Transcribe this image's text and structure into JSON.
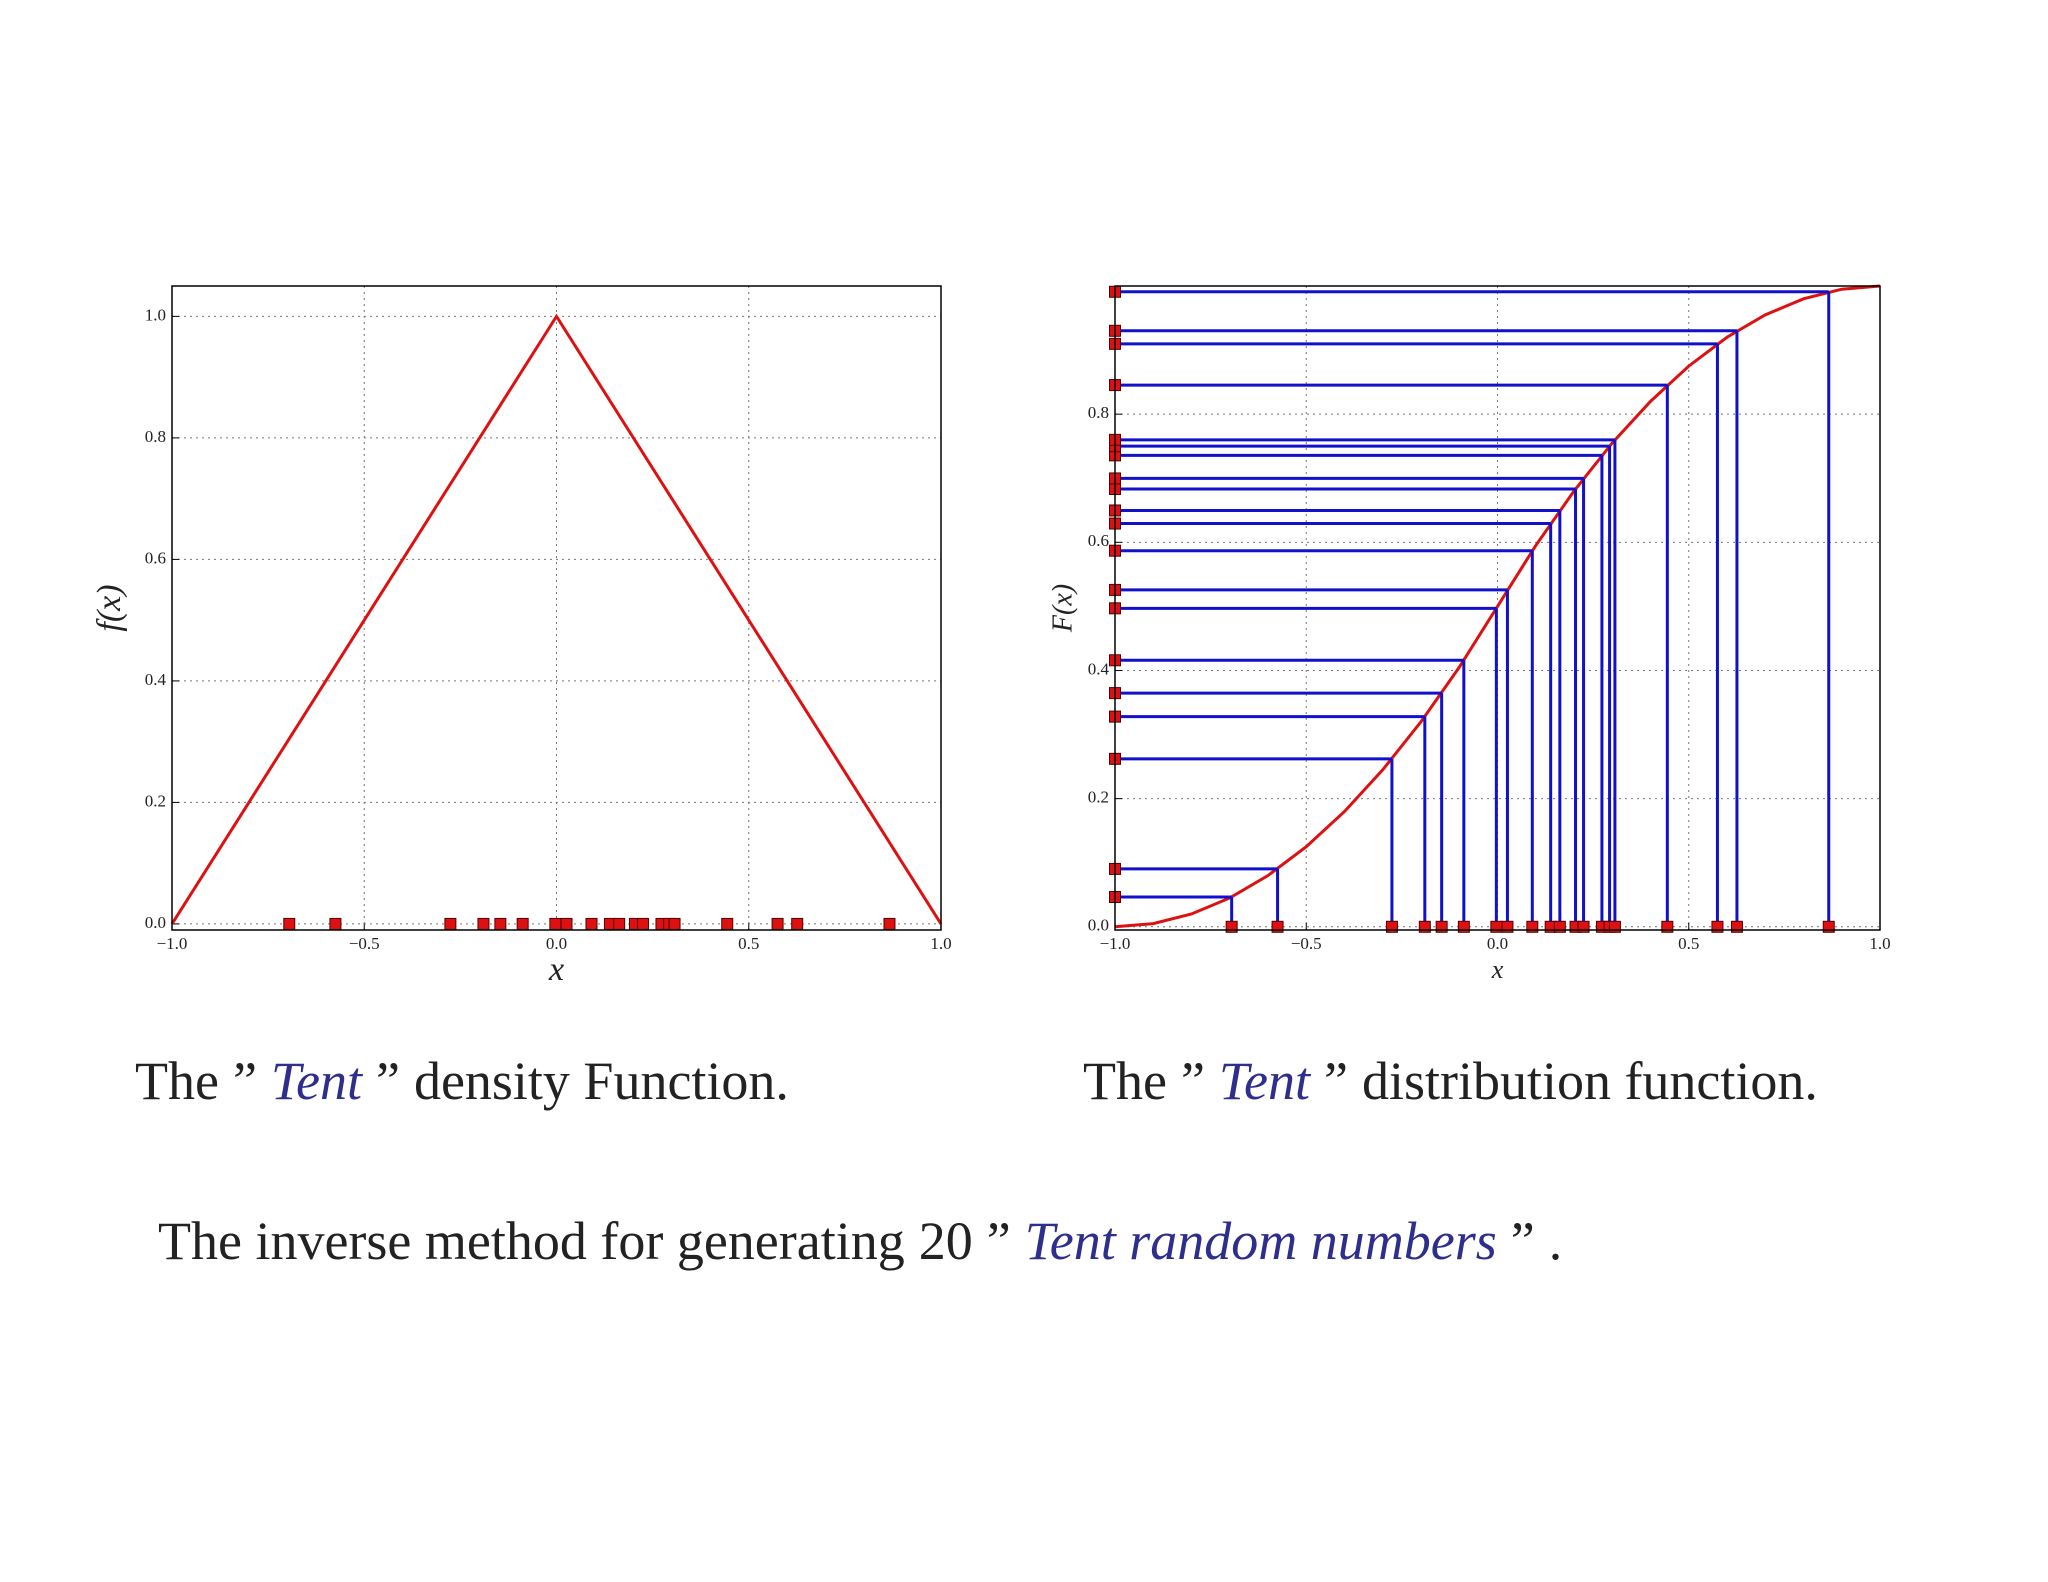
{
  "chart_data": [
    {
      "type": "line",
      "xlabel": "x",
      "ylabel": "f(x)",
      "color": "#dd1111",
      "x": [
        -1,
        0,
        1
      ],
      "values": [
        0,
        1,
        0
      ],
      "xlim": [
        -1,
        1
      ],
      "ylim": [
        -0.01,
        1.05
      ],
      "xticks": [
        {
          "value": -1,
          "label": "−1.0"
        },
        {
          "value": -0.5,
          "label": "−0.5"
        },
        {
          "value": 0,
          "label": "0.0"
        },
        0.5,
        {
          "value": 1,
          "label": "1.0"
        }
      ],
      "yticks": [
        {
          "value": 0,
          "label": "0.0"
        },
        0.2,
        0.4,
        0.6,
        0.8,
        {
          "value": 1,
          "label": "1.0"
        }
      ],
      "grid": true,
      "samples": {
        "color": "#dd1111",
        "x": [
          -0.695,
          -0.575,
          -0.276,
          -0.19,
          -0.146,
          -0.088,
          -0.003,
          0.026,
          0.091,
          0.139,
          0.163,
          0.204,
          0.225,
          0.273,
          0.293,
          0.307,
          0.444,
          0.575,
          0.626,
          0.866
        ]
      }
    },
    {
      "type": "line",
      "xlabel": "x",
      "ylabel": "F(x)",
      "color": "#dd1111",
      "x": [
        -1,
        -0.9,
        -0.8,
        -0.7,
        -0.6,
        -0.5,
        -0.4,
        -0.3,
        -0.2,
        -0.1,
        0,
        0.1,
        0.2,
        0.3,
        0.4,
        0.5,
        0.6,
        0.7,
        0.8,
        0.9,
        1
      ],
      "values": [
        0,
        0.005,
        0.02,
        0.045,
        0.08,
        0.125,
        0.18,
        0.245,
        0.32,
        0.405,
        0.5,
        0.595,
        0.68,
        0.755,
        0.82,
        0.875,
        0.92,
        0.955,
        0.98,
        0.995,
        1
      ],
      "xlim": [
        -1,
        1
      ],
      "ylim": [
        -0.005,
        1.0
      ],
      "xticks": [
        {
          "value": -1,
          "label": "−1.0"
        },
        {
          "value": -0.5,
          "label": "−0.5"
        },
        {
          "value": 0,
          "label": "0.0"
        },
        0.5,
        {
          "value": 1,
          "label": "1.0"
        }
      ],
      "yticks": [
        {
          "value": 0,
          "label": "0.0"
        },
        0.2,
        0.4,
        0.6,
        0.8
      ],
      "grid": true,
      "samples": {
        "color": "#dd1111",
        "line_color": "#1111cc",
        "x": [
          -0.695,
          -0.575,
          -0.276,
          -0.19,
          -0.146,
          -0.088,
          -0.003,
          0.026,
          0.091,
          0.139,
          0.163,
          0.204,
          0.225,
          0.273,
          0.293,
          0.307,
          0.444,
          0.575,
          0.626,
          0.866
        ],
        "values": [
          0.0465,
          0.0903,
          0.2621,
          0.328,
          0.3647,
          0.4159,
          0.497,
          0.5257,
          0.5869,
          0.6293,
          0.6497,
          0.6832,
          0.6997,
          0.7357,
          0.7501,
          0.7599,
          0.8454,
          0.9097,
          0.9301,
          0.991
        ]
      }
    }
  ],
  "captions": {
    "left": [
      "The",
      "”",
      "Tent",
      "”",
      "density Function."
    ],
    "right": [
      "The",
      "”",
      "Tent",
      "”",
      "distribution function."
    ]
  },
  "footer": [
    "The inverse method for generating",
    "20",
    "”",
    "Tent random numbers",
    "”",
    "."
  ]
}
